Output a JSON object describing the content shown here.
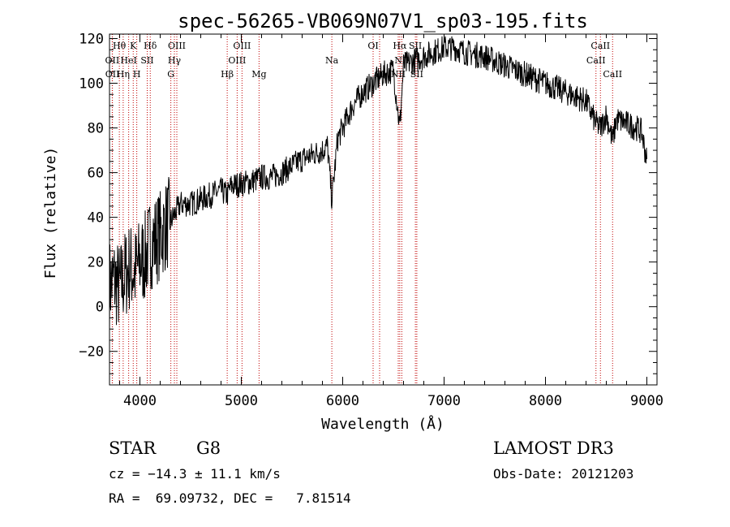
{
  "chart_data": {
    "type": "line",
    "title": "spec-56265-VB069N07V1_sp03-195.fits",
    "xlabel": "Wavelength (Å)",
    "ylabel": "Flux (relative)",
    "xlim": [
      3700,
      9100
    ],
    "ylim": [
      -35,
      122
    ],
    "xticks": [
      4000,
      5000,
      6000,
      7000,
      8000,
      9000
    ],
    "yticks": [
      -20,
      0,
      20,
      40,
      60,
      80,
      100,
      120
    ],
    "tick_labels_x": [
      "4000",
      "5000",
      "6000",
      "7000",
      "8000",
      "9000"
    ],
    "tick_labels_y": [
      "−20",
      "0",
      "20",
      "40",
      "60",
      "80",
      "100",
      "120"
    ],
    "series": [
      {
        "name": "spectrum",
        "x": [
          3700,
          3750,
          3800,
          3850,
          3900,
          3950,
          4000,
          4050,
          4100,
          4150,
          4200,
          4250,
          4300,
          4350,
          4400,
          4500,
          4600,
          4700,
          4800,
          4860,
          4900,
          5000,
          5100,
          5200,
          5300,
          5400,
          5500,
          5600,
          5700,
          5800,
          5850,
          5893,
          5950,
          6000,
          6100,
          6200,
          6300,
          6400,
          6500,
          6563,
          6600,
          6700,
          6800,
          6900,
          7000,
          7100,
          7200,
          7300,
          7400,
          7500,
          7600,
          7700,
          7800,
          7900,
          8000,
          8100,
          8200,
          8300,
          8400,
          8498,
          8542,
          8600,
          8662,
          8700,
          8800,
          8900,
          8950,
          9000
        ],
        "y": [
          10,
          12,
          8,
          14,
          18,
          15,
          20,
          22,
          28,
          30,
          32,
          36,
          38,
          42,
          46,
          46,
          48,
          50,
          52,
          50,
          54,
          55,
          56,
          58,
          58,
          60,
          63,
          66,
          68,
          70,
          72,
          48,
          75,
          80,
          90,
          96,
          100,
          104,
          106,
          80,
          108,
          110,
          112,
          114,
          116,
          116,
          114,
          113,
          112,
          110,
          108,
          106,
          104,
          102,
          100,
          98,
          96,
          94,
          92,
          82,
          80,
          86,
          74,
          84,
          82,
          80,
          78,
          65
        ],
        "noise": 6
      }
    ],
    "lines": [
      {
        "label": "Hθ",
        "wl": 3797,
        "row": 0
      },
      {
        "label": "K",
        "wl": 3934,
        "row": 0
      },
      {
        "label": "Hδ",
        "wl": 4102,
        "row": 0
      },
      {
        "label": "OIII",
        "wl": 4364,
        "row": 0
      },
      {
        "label": "OIII",
        "wl": 5007,
        "row": 0
      },
      {
        "label": "OI",
        "wl": 6300,
        "row": 0
      },
      {
        "label": "Hα",
        "wl": 6563,
        "row": 0
      },
      {
        "label": "SII",
        "wl": 6717,
        "row": 0
      },
      {
        "label": "CaII",
        "wl": 8542,
        "row": 0
      },
      {
        "label": "OII",
        "wl": 3727,
        "row": 1
      },
      {
        "label": "HeI",
        "wl": 3889,
        "row": 1
      },
      {
        "label": "SII",
        "wl": 4072,
        "row": 1
      },
      {
        "label": "Hγ",
        "wl": 4340,
        "row": 1
      },
      {
        "label": "OIII",
        "wl": 4959,
        "row": 1
      },
      {
        "label": "Na",
        "wl": 5893,
        "row": 1
      },
      {
        "label": "NII",
        "wl": 6583,
        "row": 1
      },
      {
        "label": "CaII",
        "wl": 8498,
        "row": 1
      },
      {
        "label": "OII",
        "wl": 3729,
        "row": 2
      },
      {
        "label": "Hη",
        "wl": 3835,
        "row": 2
      },
      {
        "label": "H",
        "wl": 3969,
        "row": 2
      },
      {
        "label": "G",
        "wl": 4305,
        "row": 2
      },
      {
        "label": "Hβ",
        "wl": 4861,
        "row": 2
      },
      {
        "label": "Mg",
        "wl": 5175,
        "row": 2
      },
      {
        "label": "OI",
        "wl": 6364,
        "row": 2
      },
      {
        "label": "NII",
        "wl": 6548,
        "row": 2
      },
      {
        "label": "SII",
        "wl": 6731,
        "row": 2
      },
      {
        "label": "CaII",
        "wl": 8662,
        "row": 2
      }
    ]
  },
  "info": {
    "class": "STAR",
    "subclass": "G8",
    "survey": "LAMOST DR3",
    "cz": "cz = −14.3 ± 11.1 km/s",
    "obs_date": "Obs-Date: 20121203",
    "radec": "RA =  69.09732, DEC =   7.81514"
  },
  "colors": {
    "axis": "#000000",
    "spectrum": "#000000",
    "line_marker": "#c00000"
  }
}
